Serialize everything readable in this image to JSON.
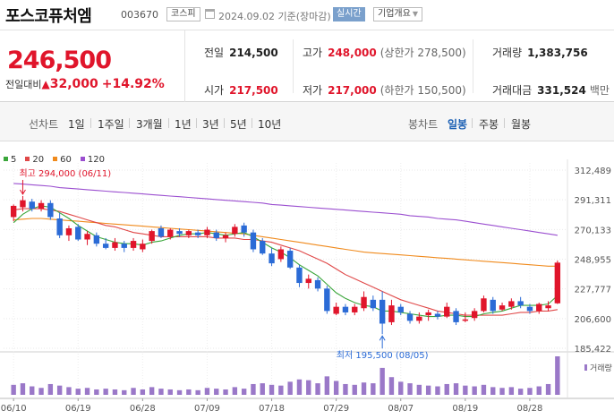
{
  "header": {
    "name": "포스코퓨처엠",
    "code": "003670",
    "market": "코스피",
    "date": "2024.09.02 기준(장마감)",
    "realtime": "실시간",
    "company_info": "기업개요"
  },
  "quote": {
    "price": "246,500",
    "change_label": "전일대비",
    "change": "32,000",
    "change_pct": "+14.92%",
    "prev_close_label": "전일",
    "prev_close": "214,500",
    "high_label": "고가",
    "high": "248,000",
    "upper_limit": "(상한가 278,500)",
    "volume_label": "거래량",
    "volume": "1,383,756",
    "open_label": "시가",
    "open": "217,500",
    "low_label": "저가",
    "low": "217,000",
    "lower_limit": "(하한가 150,500)",
    "amount_label": "거래대금",
    "amount": "331,524",
    "amount_unit": "백만"
  },
  "tabs": {
    "line_group": "선차트",
    "line_periods": [
      "1일",
      "1주일",
      "3개월",
      "1년",
      "3년",
      "5년",
      "10년"
    ],
    "candle_group": "봉차트",
    "candle_periods": [
      "일봉",
      "주봉",
      "월봉"
    ],
    "active_candle": "일봉"
  },
  "colors": {
    "up": "#e0152b",
    "down": "#2b6bd6",
    "ma5": "#3aa63a",
    "ma20": "#e04848",
    "ma60": "#f08a1c",
    "ma120": "#9b4fd0",
    "volume": "#9a78c8"
  },
  "chart_data": {
    "type": "candlestick",
    "legend": [
      {
        "label": "5",
        "color": "#3aa63a"
      },
      {
        "label": "20",
        "color": "#e04848"
      },
      {
        "label": "60",
        "color": "#f08a1c"
      },
      {
        "label": "120",
        "color": "#9b4fd0"
      }
    ],
    "y_ticks": [
      "312,489",
      "291,311",
      "270,133",
      "248,955",
      "227,777",
      "206,600",
      "185,422"
    ],
    "y_tick_values": [
      312489,
      291311,
      270133,
      248955,
      227777,
      206600,
      185422
    ],
    "ylim": [
      185422,
      312489
    ],
    "x_ticks": [
      "06/10",
      "06/19",
      "06/28",
      "07/09",
      "07/18",
      "07/29",
      "08/07",
      "08/19",
      "08/28"
    ],
    "x_tick_index": [
      0,
      7,
      14,
      21,
      28,
      35,
      42,
      49,
      56
    ],
    "annotations": {
      "high": "최고 294,000 (06/11)",
      "high_index": 1,
      "high_value": 294000,
      "low": "최저 195,500 (08/05)",
      "low_index": 40,
      "low_value": 195500
    },
    "volume_label": "거래량",
    "candles": [
      {
        "o": 279000,
        "h": 288000,
        "l": 276000,
        "c": 287000
      },
      {
        "o": 286000,
        "h": 294000,
        "l": 283000,
        "c": 291000
      },
      {
        "o": 290000,
        "h": 292000,
        "l": 283000,
        "c": 285000
      },
      {
        "o": 285000,
        "h": 291000,
        "l": 283000,
        "c": 289000
      },
      {
        "o": 289000,
        "h": 291000,
        "l": 277000,
        "c": 279000
      },
      {
        "o": 278000,
        "h": 282000,
        "l": 264000,
        "c": 266000
      },
      {
        "o": 266000,
        "h": 273000,
        "l": 262000,
        "c": 271000
      },
      {
        "o": 272000,
        "h": 274000,
        "l": 262000,
        "c": 263000
      },
      {
        "o": 263000,
        "h": 269000,
        "l": 259000,
        "c": 267000
      },
      {
        "o": 266000,
        "h": 268000,
        "l": 258000,
        "c": 260000
      },
      {
        "o": 260000,
        "h": 264000,
        "l": 256000,
        "c": 257000
      },
      {
        "o": 257000,
        "h": 264000,
        "l": 255000,
        "c": 261000
      },
      {
        "o": 260000,
        "h": 262000,
        "l": 254000,
        "c": 257000
      },
      {
        "o": 257000,
        "h": 264000,
        "l": 255000,
        "c": 262000
      },
      {
        "o": 256000,
        "h": 263000,
        "l": 254000,
        "c": 260000
      },
      {
        "o": 262000,
        "h": 270000,
        "l": 260000,
        "c": 269000
      },
      {
        "o": 271000,
        "h": 273000,
        "l": 264000,
        "c": 265000
      },
      {
        "o": 265000,
        "h": 271000,
        "l": 263000,
        "c": 270000
      },
      {
        "o": 269000,
        "h": 271000,
        "l": 265000,
        "c": 267000
      },
      {
        "o": 266000,
        "h": 270000,
        "l": 264000,
        "c": 269000
      },
      {
        "o": 268000,
        "h": 270000,
        "l": 264000,
        "c": 266000
      },
      {
        "o": 266000,
        "h": 272000,
        "l": 264000,
        "c": 270000
      },
      {
        "o": 268000,
        "h": 270000,
        "l": 262000,
        "c": 264000
      },
      {
        "o": 264000,
        "h": 268000,
        "l": 261000,
        "c": 266000
      },
      {
        "o": 267000,
        "h": 274000,
        "l": 265000,
        "c": 272000
      },
      {
        "o": 273000,
        "h": 275000,
        "l": 265000,
        "c": 268000
      },
      {
        "o": 268000,
        "h": 270000,
        "l": 254000,
        "c": 256000
      },
      {
        "o": 262000,
        "h": 264000,
        "l": 252000,
        "c": 253000
      },
      {
        "o": 253000,
        "h": 257000,
        "l": 244000,
        "c": 246000
      },
      {
        "o": 249000,
        "h": 258000,
        "l": 247000,
        "c": 256000
      },
      {
        "o": 255000,
        "h": 257000,
        "l": 242000,
        "c": 243000
      },
      {
        "o": 243000,
        "h": 245000,
        "l": 229000,
        "c": 232000
      },
      {
        "o": 232000,
        "h": 238000,
        "l": 228000,
        "c": 235000
      },
      {
        "o": 234000,
        "h": 236000,
        "l": 226000,
        "c": 228000
      },
      {
        "o": 228000,
        "h": 230000,
        "l": 210000,
        "c": 212000
      },
      {
        "o": 210000,
        "h": 218000,
        "l": 209000,
        "c": 215000
      },
      {
        "o": 215000,
        "h": 217000,
        "l": 209000,
        "c": 211000
      },
      {
        "o": 211000,
        "h": 217000,
        "l": 209000,
        "c": 215000
      },
      {
        "o": 214000,
        "h": 226000,
        "l": 212000,
        "c": 222000
      },
      {
        "o": 220000,
        "h": 223000,
        "l": 212000,
        "c": 214000
      },
      {
        "o": 220000,
        "h": 226000,
        "l": 195500,
        "c": 203000
      },
      {
        "o": 204000,
        "h": 220000,
        "l": 202000,
        "c": 216000
      },
      {
        "o": 215000,
        "h": 217000,
        "l": 209000,
        "c": 211000
      },
      {
        "o": 210000,
        "h": 212000,
        "l": 203000,
        "c": 205000
      },
      {
        "o": 205000,
        "h": 211000,
        "l": 203000,
        "c": 208000
      },
      {
        "o": 209000,
        "h": 213000,
        "l": 205000,
        "c": 211000
      },
      {
        "o": 210000,
        "h": 212000,
        "l": 206000,
        "c": 208000
      },
      {
        "o": 208000,
        "h": 218000,
        "l": 207000,
        "c": 215000
      },
      {
        "o": 212000,
        "h": 214000,
        "l": 202000,
        "c": 204000
      },
      {
        "o": 205000,
        "h": 211000,
        "l": 204000,
        "c": 206000
      },
      {
        "o": 207000,
        "h": 214000,
        "l": 205000,
        "c": 212000
      },
      {
        "o": 212000,
        "h": 223000,
        "l": 211000,
        "c": 221000
      },
      {
        "o": 220000,
        "h": 222000,
        "l": 210000,
        "c": 212000
      },
      {
        "o": 213000,
        "h": 218000,
        "l": 212000,
        "c": 216000
      },
      {
        "o": 215000,
        "h": 221000,
        "l": 213000,
        "c": 219000
      },
      {
        "o": 219000,
        "h": 222000,
        "l": 214000,
        "c": 216000
      },
      {
        "o": 215000,
        "h": 217000,
        "l": 210000,
        "c": 212000
      },
      {
        "o": 212000,
        "h": 218000,
        "l": 210000,
        "c": 217000
      },
      {
        "o": 214000,
        "h": 219000,
        "l": 212000,
        "c": 216000
      },
      {
        "o": 217500,
        "h": 248000,
        "l": 217000,
        "c": 246500
      }
    ],
    "volume": [
      26,
      30,
      22,
      18,
      28,
      24,
      20,
      16,
      18,
      14,
      16,
      14,
      12,
      18,
      14,
      20,
      16,
      14,
      12,
      14,
      12,
      18,
      16,
      14,
      20,
      16,
      28,
      30,
      26,
      24,
      34,
      40,
      38,
      30,
      48,
      36,
      28,
      26,
      32,
      30,
      70,
      46,
      34,
      30,
      26,
      24,
      22,
      28,
      30,
      24,
      22,
      26,
      20,
      18,
      20,
      16,
      18,
      22,
      28,
      100
    ],
    "ma5": [
      275000,
      281000,
      285000,
      287000,
      286000,
      282000,
      278000,
      273000,
      269000,
      265000,
      263000,
      261000,
      260000,
      260000,
      259000,
      261000,
      262000,
      264000,
      266000,
      267000,
      267000,
      268000,
      267000,
      266000,
      267000,
      268000,
      265000,
      261000,
      257000,
      254000,
      250000,
      245000,
      241000,
      237000,
      231000,
      225000,
      221000,
      218000,
      216000,
      215000,
      212000,
      212000,
      211000,
      210000,
      209000,
      208000,
      208000,
      209000,
      209000,
      208000,
      208000,
      210000,
      211000,
      212000,
      214000,
      216000,
      216000,
      216000,
      217000,
      223000
    ],
    "ma20": [
      284000,
      285000,
      285000,
      285000,
      284000,
      283000,
      281000,
      279000,
      277000,
      275000,
      273000,
      272000,
      270000,
      268000,
      267000,
      266000,
      265000,
      265000,
      265000,
      265000,
      265000,
      265000,
      264000,
      264000,
      264000,
      263000,
      263000,
      262000,
      261000,
      259000,
      257000,
      255000,
      252000,
      249000,
      246000,
      242000,
      238000,
      235000,
      232000,
      229000,
      226000,
      223000,
      220000,
      218000,
      216000,
      214000,
      212000,
      211000,
      210000,
      209000,
      209000,
      209000,
      209000,
      209000,
      210000,
      211000,
      211000,
      212000,
      212000,
      213000
    ],
    "ma60": [
      277000,
      277500,
      278000,
      278000,
      277500,
      277000,
      276500,
      276000,
      275500,
      275000,
      274500,
      274000,
      273500,
      273000,
      272500,
      272000,
      271500,
      271000,
      270500,
      270000,
      269500,
      269000,
      268500,
      268000,
      267500,
      267000,
      266000,
      265000,
      264000,
      263000,
      262000,
      261000,
      260000,
      259000,
      258000,
      257000,
      256000,
      255000,
      254000,
      253500,
      253000,
      252500,
      252000,
      251500,
      251000,
      250500,
      250000,
      249500,
      249000,
      248500,
      248000,
      247500,
      247000,
      246500,
      246000,
      245500,
      245000,
      244500,
      244000,
      244000
    ],
    "ma120": [
      303000,
      302500,
      302000,
      301500,
      301000,
      300000,
      299500,
      299000,
      298500,
      298000,
      297500,
      297000,
      296500,
      296000,
      295500,
      295000,
      294500,
      294000,
      293500,
      293000,
      292500,
      292000,
      291500,
      291000,
      290500,
      290000,
      289500,
      289000,
      288000,
      287500,
      287000,
      286500,
      286000,
      285500,
      285000,
      284500,
      284000,
      283500,
      283000,
      282500,
      282000,
      281500,
      281000,
      280000,
      279500,
      279000,
      278000,
      277500,
      277000,
      276000,
      275000,
      274000,
      273000,
      272000,
      271000,
      270000,
      269000,
      268000,
      267000,
      266000
    ]
  }
}
